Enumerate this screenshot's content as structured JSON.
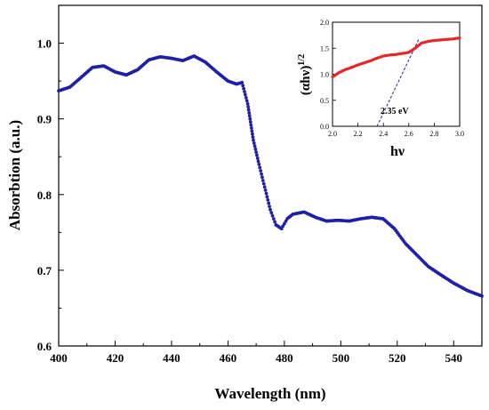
{
  "chart_data": [
    {
      "type": "scatter",
      "xlabel": "Wavelength (nm)",
      "ylabel": "Absorbtion (a.u.)",
      "xlim": [
        400,
        550
      ],
      "ylim": [
        0.6,
        1.05
      ],
      "x_ticks": [
        400,
        420,
        440,
        460,
        480,
        500,
        520,
        540
      ],
      "y_ticks": [
        0.6,
        0.7,
        0.8,
        0.9,
        1.0
      ],
      "x_tick_labels": [
        "400",
        "420",
        "440",
        "460",
        "480",
        "500",
        "520",
        "540"
      ],
      "y_tick_labels": [
        "0.6",
        "0.7",
        "0.8",
        "0.9",
        "1.0"
      ],
      "marker_color": "#1f1fa8",
      "series": [
        {
          "x": [
            400,
            404,
            408,
            412,
            416,
            420,
            424,
            428,
            432,
            436,
            440,
            444,
            448,
            452,
            456,
            460,
            463,
            465,
            467,
            469,
            471,
            473,
            475,
            477,
            479,
            481,
            483,
            487,
            491,
            495,
            499,
            503,
            507,
            511,
            515,
            519,
            523,
            527,
            531,
            535,
            540,
            545,
            550
          ],
          "y": [
            0.937,
            0.942,
            0.955,
            0.968,
            0.97,
            0.962,
            0.958,
            0.965,
            0.978,
            0.982,
            0.98,
            0.977,
            0.983,
            0.975,
            0.962,
            0.95,
            0.946,
            0.948,
            0.92,
            0.872,
            0.84,
            0.81,
            0.78,
            0.76,
            0.755,
            0.768,
            0.774,
            0.777,
            0.77,
            0.765,
            0.766,
            0.765,
            0.768,
            0.77,
            0.768,
            0.755,
            0.735,
            0.72,
            0.705,
            0.695,
            0.683,
            0.673,
            0.666
          ]
        }
      ]
    },
    {
      "type": "line",
      "xlabel": "hν",
      "ylabel": "(αhν)",
      "ylabel_exponent": "1/2",
      "xlim": [
        2.0,
        3.0
      ],
      "ylim": [
        0.0,
        2.0
      ],
      "x_ticks": [
        2.0,
        2.2,
        2.4,
        2.6,
        2.8,
        3.0
      ],
      "y_ticks": [
        0.0,
        0.5,
        1.0,
        1.5,
        2.0
      ],
      "x_tick_labels": [
        "2.0",
        "2.2",
        "2.4",
        "2.6",
        "2.8",
        "3.0"
      ],
      "y_tick_labels": [
        "0.0",
        "0.5",
        "1.0",
        "1.5",
        "2.0"
      ],
      "series_color": "#e8262a",
      "fit_color": "#1f1fa8",
      "annotation": "2.35 eV",
      "series": [
        {
          "x": [
            2.0,
            2.05,
            2.1,
            2.15,
            2.2,
            2.25,
            2.3,
            2.35,
            2.4,
            2.45,
            2.5,
            2.55,
            2.6,
            2.65,
            2.7,
            2.75,
            2.8,
            2.85,
            2.9,
            2.95,
            3.0
          ],
          "y": [
            0.95,
            1.03,
            1.09,
            1.13,
            1.18,
            1.22,
            1.26,
            1.31,
            1.35,
            1.37,
            1.38,
            1.4,
            1.42,
            1.5,
            1.6,
            1.63,
            1.65,
            1.66,
            1.67,
            1.68,
            1.7
          ]
        }
      ],
      "fit_line": {
        "x": [
          2.35,
          2.68
        ],
        "y": [
          0.0,
          1.68
        ]
      }
    }
  ]
}
